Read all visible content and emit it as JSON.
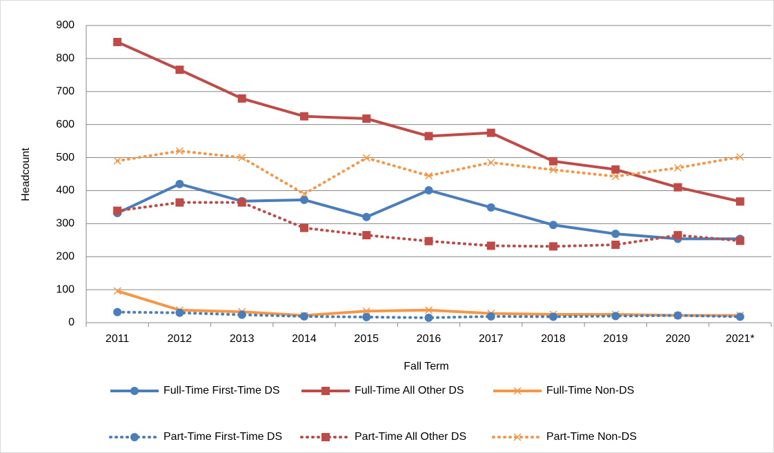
{
  "chart_data": {
    "type": "line",
    "y_label": "Headcount",
    "x_label": "Fall Term",
    "categories": [
      "2011",
      "2012",
      "2013",
      "2014",
      "2015",
      "2016",
      "2017",
      "2018",
      "2019",
      "2020",
      "2021*"
    ],
    "ylim": [
      0,
      900
    ],
    "yticks": [
      0,
      100,
      200,
      300,
      400,
      500,
      600,
      700,
      800,
      900
    ],
    "grid": true,
    "legend": "bottom",
    "series": [
      {
        "name": "Full-Time First-Time DS",
        "color": "#4a7ebb",
        "line": "solid",
        "marker": "circle",
        "values": [
          332,
          420,
          368,
          372,
          320,
          401,
          349,
          296,
          269,
          254,
          254
        ]
      },
      {
        "name": "Full-Time All Other DS",
        "color": "#be4b48",
        "line": "solid",
        "marker": "square",
        "values": [
          850,
          766,
          679,
          625,
          618,
          565,
          575,
          489,
          464,
          410,
          367
        ]
      },
      {
        "name": "Full-Time Non-DS",
        "color": "#f79646",
        "line": "solid",
        "marker": "x",
        "values": [
          96,
          38,
          33,
          22,
          35,
          38,
          28,
          25,
          25,
          22,
          22
        ]
      },
      {
        "name": "Part-Time First-Time DS",
        "color": "#4a7ebb",
        "line": "dotted",
        "marker": "circle",
        "values": [
          32,
          30,
          24,
          19,
          17,
          15,
          19,
          18,
          20,
          22,
          18
        ]
      },
      {
        "name": "Part-Time All Other DS",
        "color": "#be4b48",
        "line": "dotted",
        "marker": "square",
        "values": [
          339,
          364,
          364,
          287,
          265,
          247,
          233,
          231,
          236,
          265,
          248
        ]
      },
      {
        "name": "Part-Time Non-DS",
        "color": "#f79646",
        "line": "dotted",
        "marker": "x",
        "values": [
          490,
          520,
          500,
          390,
          499,
          445,
          485,
          463,
          443,
          469,
          502
        ]
      }
    ]
  }
}
